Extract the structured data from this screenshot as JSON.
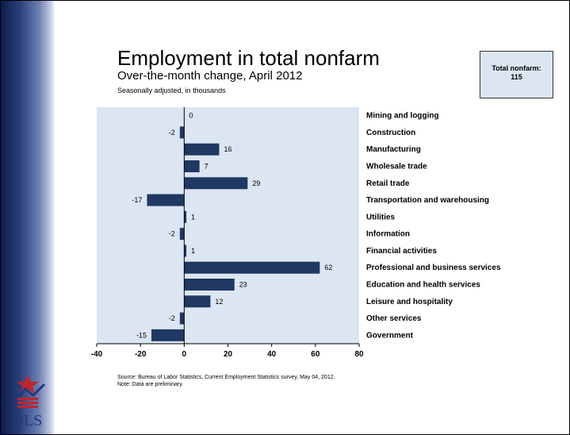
{
  "title": "Employment in total nonfarm",
  "subtitle": "Over-the-month change, April 2012",
  "note_adjustment": "Seasonally adjusted, in thousands",
  "callout": {
    "label": "Total nonfarm:",
    "value": "115"
  },
  "source": "Source: Bureau of Labor Statistics, Current Employment Statistics survey, May 04, 2012.",
  "note": "Note: Data are preliminary.",
  "logo_text": "BLS",
  "colors": {
    "bar": "#1f3864",
    "plot_bg": "#dce6f2",
    "sidebar_dark": "#0b1d4d",
    "logo_red": "#c0252b",
    "logo_blue": "#1f3a7a"
  },
  "chart_data": {
    "type": "bar",
    "orientation": "horizontal",
    "categories": [
      "Mining and logging",
      "Construction",
      "Manufacturing",
      "Wholesale trade",
      "Retail trade",
      "Transportation and warehousing",
      "Utilities",
      "Information",
      "Financial activities",
      "Professional and business services",
      "Education and health services",
      "Leisure and hospitality",
      "Other services",
      "Government"
    ],
    "values": [
      0,
      -2,
      16,
      7,
      29,
      -17,
      1,
      -2,
      1,
      62,
      23,
      12,
      -2,
      -15
    ],
    "xlim": [
      -40,
      80
    ],
    "xticks": [
      -40,
      -20,
      0,
      20,
      40,
      60,
      80
    ],
    "grid": false,
    "data_labels": true,
    "category_labels_position": "right"
  }
}
